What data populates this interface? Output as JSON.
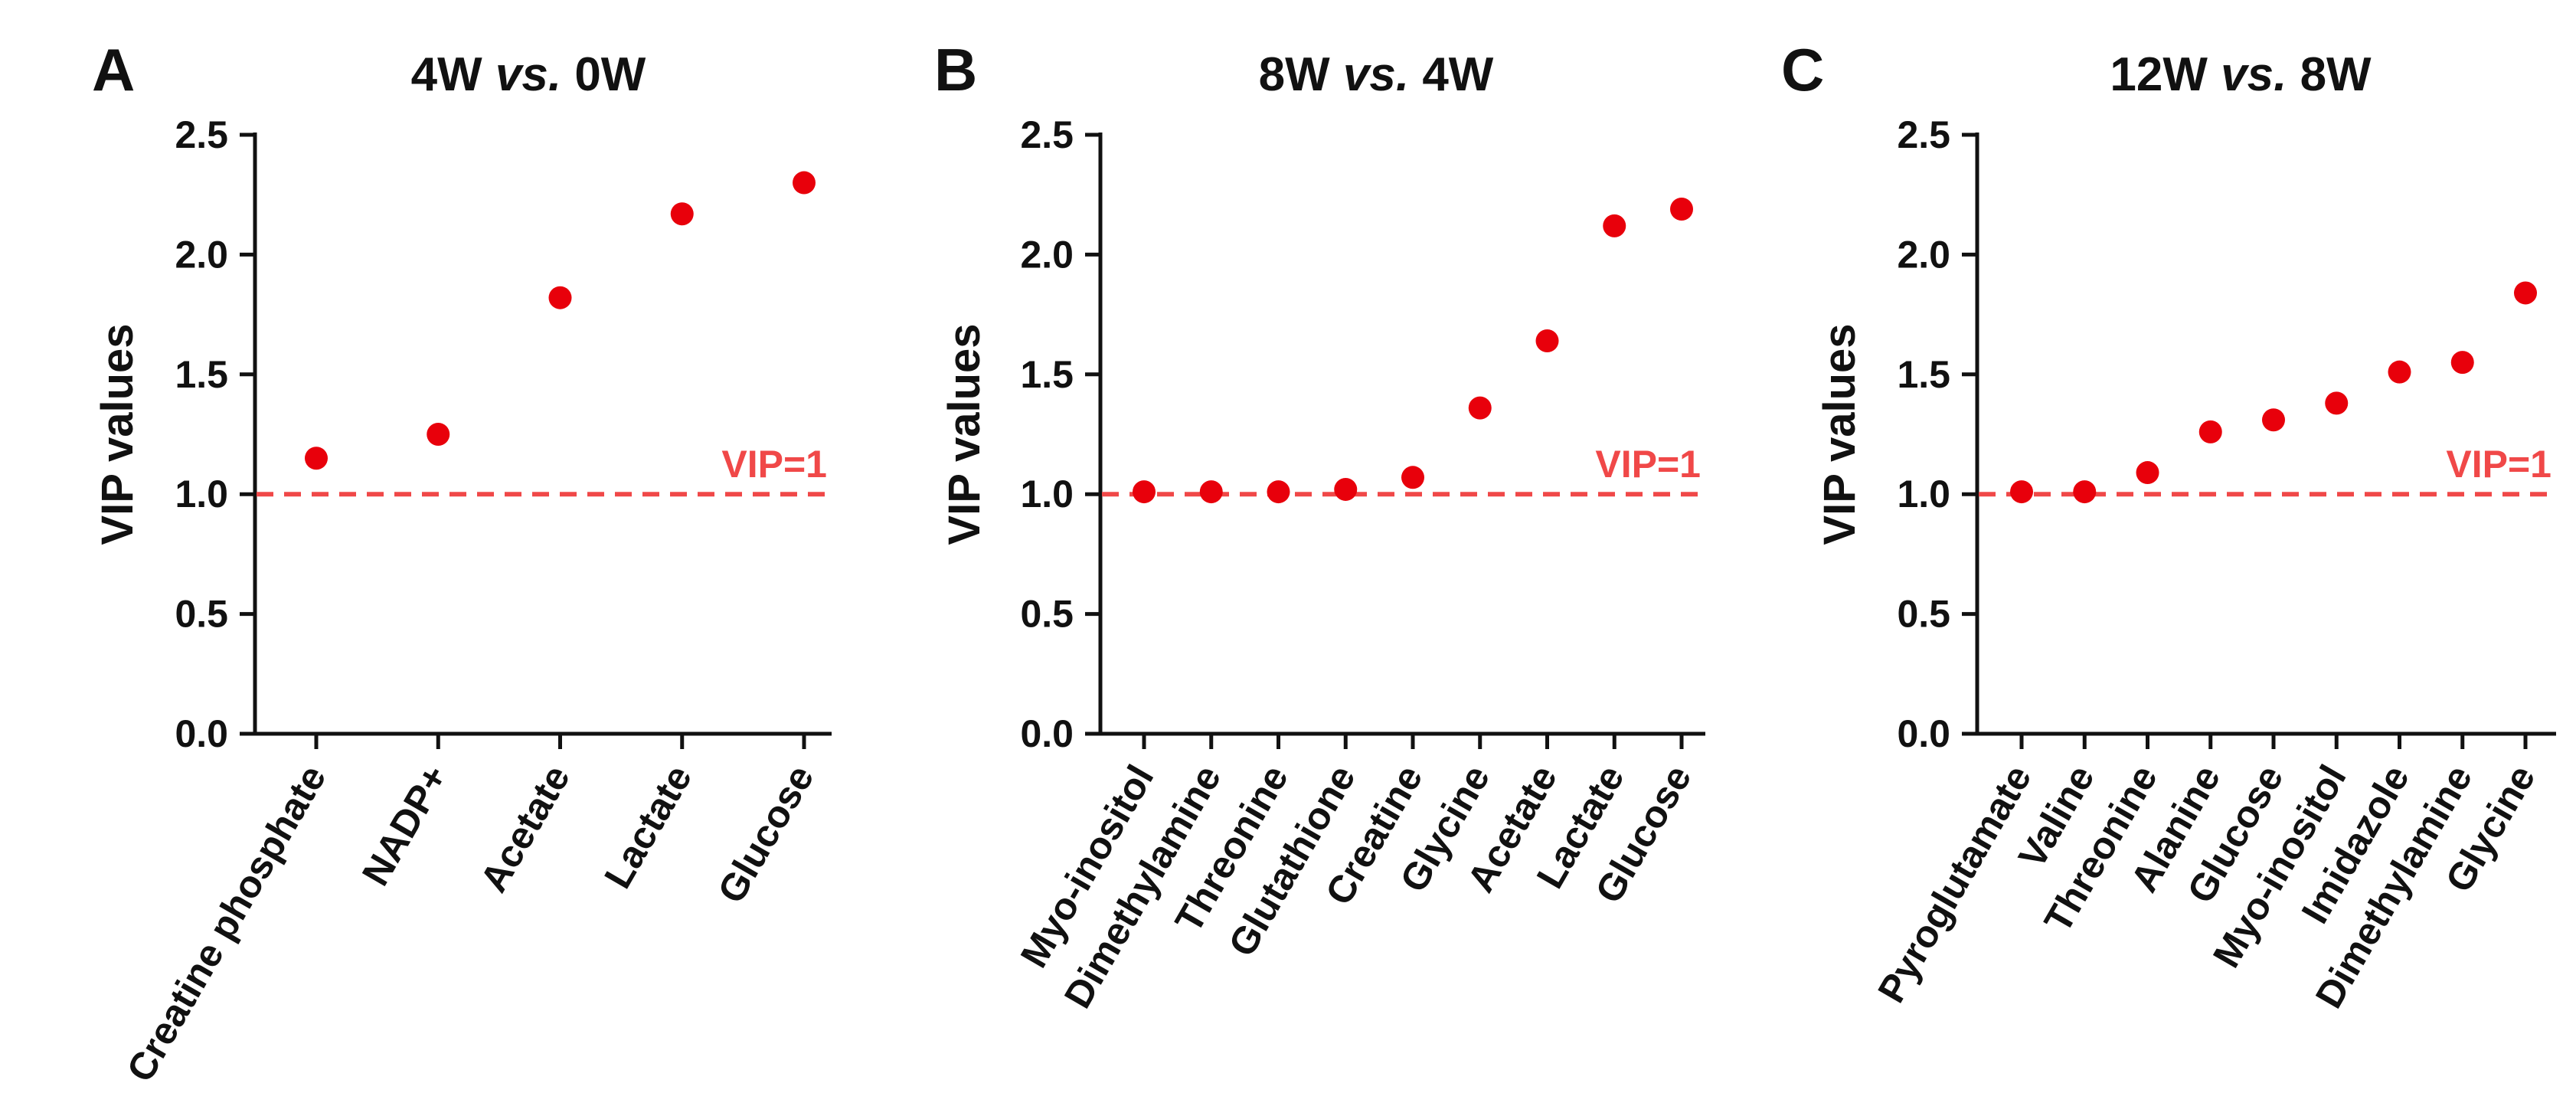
{
  "colors": {
    "point": "#e8000b",
    "reference": "#f04848",
    "axis": "#111111"
  },
  "chart_data": [
    {
      "type": "scatter",
      "panel": "A",
      "title_prefix": "4W ",
      "title_italic": "vs.",
      "title_suffix": " 0W",
      "ylabel": "VIP values",
      "ylim": [
        0,
        2.5
      ],
      "yticks": [
        "0.0",
        "0.5",
        "1.0",
        "1.5",
        "2.0",
        "2.5"
      ],
      "categories": [
        "Creatine phosphate",
        "NADP+",
        "Acetate",
        "Lactate",
        "Glucose"
      ],
      "values": [
        1.15,
        1.25,
        1.82,
        2.17,
        2.3
      ],
      "reference": {
        "value": 1.0,
        "label": "VIP=1"
      }
    },
    {
      "type": "scatter",
      "panel": "B",
      "title_prefix": "8W ",
      "title_italic": "vs.",
      "title_suffix": " 4W",
      "ylabel": "VIP values",
      "ylim": [
        0,
        2.5
      ],
      "yticks": [
        "0.0",
        "0.5",
        "1.0",
        "1.5",
        "2.0",
        "2.5"
      ],
      "categories": [
        "Myo-inositol",
        "Dimethylamine",
        "Threonine",
        "Glutathione",
        "Creatine",
        "Glycine",
        "Acetate",
        "Lactate",
        "Glucose"
      ],
      "values": [
        1.01,
        1.01,
        1.01,
        1.02,
        1.07,
        1.36,
        1.64,
        2.12,
        2.19
      ],
      "reference": {
        "value": 1.0,
        "label": "VIP=1"
      }
    },
    {
      "type": "scatter",
      "panel": "C",
      "title_prefix": "12W ",
      "title_italic": "vs.",
      "title_suffix": " 8W",
      "ylabel": "VIP values",
      "ylim": [
        0,
        2.5
      ],
      "yticks": [
        "0.0",
        "0.5",
        "1.0",
        "1.5",
        "2.0",
        "2.5"
      ],
      "categories": [
        "Pyroglutamate",
        "Valine",
        "Threonine",
        "Alanine",
        "Glucose",
        "Myo-inositol",
        "Imidazole",
        "Dimethylamine",
        "Glycine"
      ],
      "values": [
        1.01,
        1.01,
        1.09,
        1.26,
        1.31,
        1.38,
        1.51,
        1.55,
        1.84
      ],
      "reference": {
        "value": 1.0,
        "label": "VIP=1"
      }
    }
  ]
}
